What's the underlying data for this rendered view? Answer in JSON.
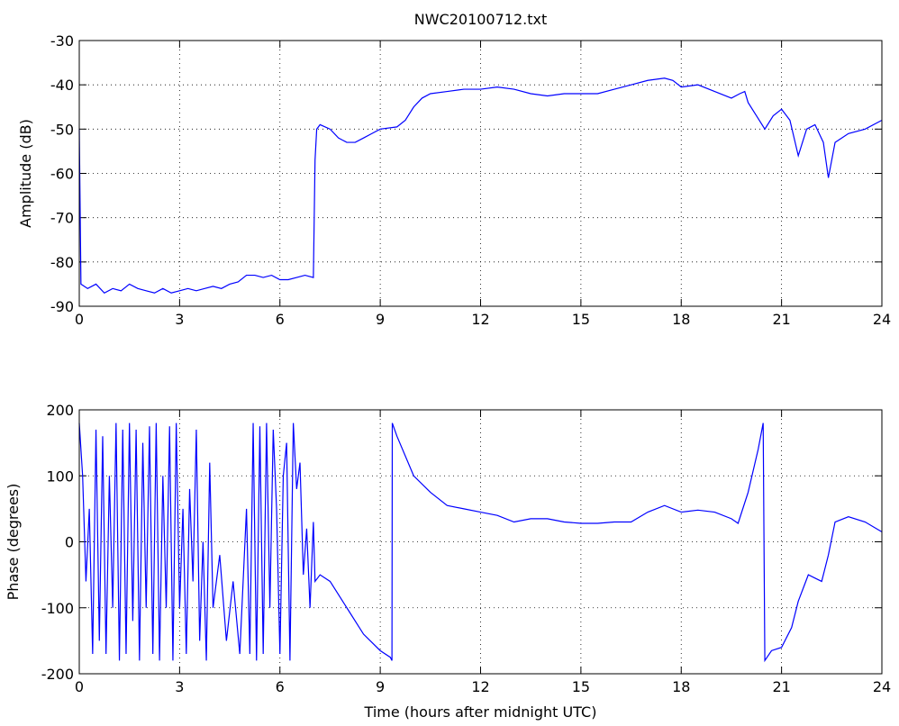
{
  "chart_data": [
    {
      "type": "line",
      "title": "NWC20100712.txt",
      "y_label": "Amplitude (dB)",
      "xlim": [
        0,
        24
      ],
      "xticks": [
        0,
        3,
        6,
        9,
        12,
        15,
        18,
        21,
        24
      ],
      "ylim": [
        -90,
        -30
      ],
      "yticks": [
        -90,
        -80,
        -70,
        -60,
        -50,
        -40,
        -30
      ],
      "grid": true,
      "x": [
        0,
        0.05,
        0.25,
        0.5,
        0.75,
        1,
        1.25,
        1.5,
        1.75,
        2,
        2.25,
        2.5,
        2.75,
        3,
        3.25,
        3.5,
        3.75,
        4,
        4.25,
        4.5,
        4.75,
        5,
        5.25,
        5.5,
        5.75,
        6,
        6.25,
        6.5,
        6.75,
        7,
        7.05,
        7.1,
        7.2,
        7.5,
        7.75,
        8,
        8.25,
        8.5,
        8.75,
        9,
        9.5,
        9.75,
        10,
        10.25,
        10.5,
        11,
        11.5,
        12,
        12.5,
        13,
        13.5,
        14,
        14.5,
        15,
        15.5,
        16,
        16.5,
        17,
        17.5,
        17.75,
        18,
        18.5,
        19,
        19.5,
        19.75,
        19.9,
        20,
        20.25,
        20.5,
        20.75,
        21,
        21.25,
        21.5,
        21.75,
        22,
        22.25,
        22.4,
        22.6,
        23,
        23.5,
        24
      ],
      "series": [
        {
          "color": "#0000ff",
          "values": [
            -50,
            -85,
            -86,
            -85,
            -87,
            -86,
            -86.5,
            -85,
            -86,
            -86.5,
            -87,
            -86,
            -87,
            -86.5,
            -86,
            -86.5,
            -86,
            -85.5,
            -86,
            -85,
            -84.5,
            -83,
            -83,
            -83.5,
            -83,
            -84,
            -84,
            -83.5,
            -83,
            -83.5,
            -57,
            -50,
            -49,
            -50,
            -52,
            -53,
            -53,
            -52,
            -51,
            -50,
            -49.5,
            -48,
            -45,
            -43,
            -42,
            -41.5,
            -41,
            -41,
            -40.5,
            -41,
            -42,
            -42.5,
            -42,
            -42,
            -42,
            -41,
            -40,
            -39,
            -38.5,
            -39,
            -40.5,
            -40,
            -41.5,
            -43,
            -42,
            -41.5,
            -44,
            -47,
            -50,
            -47,
            -45.5,
            -48,
            -56,
            -50,
            -49,
            -53,
            -61,
            -53,
            -51,
            -50,
            -48
          ]
        }
      ]
    },
    {
      "type": "line",
      "x_label": "Time (hours after midnight UTC)",
      "y_label": "Phase (degrees)",
      "xlim": [
        0,
        24
      ],
      "xticks": [
        0,
        3,
        6,
        9,
        12,
        15,
        18,
        21,
        24
      ],
      "ylim": [
        -200,
        200
      ],
      "yticks": [
        -200,
        -100,
        0,
        100,
        200
      ],
      "grid": true,
      "x": [
        0,
        0.1,
        0.2,
        0.3,
        0.4,
        0.5,
        0.6,
        0.7,
        0.8,
        0.9,
        1,
        1.1,
        1.2,
        1.3,
        1.4,
        1.5,
        1.6,
        1.7,
        1.8,
        1.9,
        2,
        2.1,
        2.2,
        2.3,
        2.4,
        2.5,
        2.6,
        2.7,
        2.8,
        2.9,
        3,
        3.1,
        3.2,
        3.3,
        3.4,
        3.5,
        3.6,
        3.7,
        3.8,
        3.9,
        4,
        4.2,
        4.4,
        4.6,
        4.8,
        5,
        5.1,
        5.2,
        5.3,
        5.4,
        5.5,
        5.6,
        5.7,
        5.8,
        5.9,
        6,
        6.1,
        6.2,
        6.3,
        6.4,
        6.5,
        6.6,
        6.7,
        6.8,
        6.9,
        7,
        7.05,
        7.2,
        7.5,
        8,
        8.5,
        9,
        9.3,
        9.35,
        9.36,
        9.5,
        10,
        10.5,
        11,
        11.5,
        12,
        12.5,
        13,
        13.5,
        14,
        14.5,
        15,
        15.5,
        16,
        16.5,
        17,
        17.5,
        18,
        18.5,
        19,
        19.5,
        19.7,
        20,
        20.3,
        20.45,
        20.5,
        20.7,
        21,
        21.3,
        21.5,
        21.8,
        22,
        22.2,
        22.4,
        22.6,
        23,
        23.5,
        24
      ],
      "series": [
        {
          "color": "#0000ff",
          "values": [
            180,
            100,
            -60,
            50,
            -170,
            170,
            -150,
            160,
            -170,
            100,
            -100,
            180,
            -180,
            170,
            -170,
            180,
            -120,
            170,
            -180,
            150,
            -100,
            175,
            -170,
            180,
            -180,
            100,
            -100,
            175,
            -180,
            180,
            -100,
            50,
            -170,
            80,
            -60,
            170,
            -150,
            0,
            -180,
            120,
            -100,
            -20,
            -150,
            -60,
            -170,
            50,
            -170,
            180,
            -180,
            175,
            -170,
            180,
            -100,
            170,
            50,
            -170,
            100,
            150,
            -180,
            180,
            80,
            120,
            -50,
            20,
            -100,
            30,
            -60,
            -50,
            -60,
            -100,
            -140,
            -165,
            -175,
            -180,
            180,
            160,
            100,
            75,
            55,
            50,
            45,
            40,
            30,
            35,
            35,
            30,
            28,
            28,
            30,
            30,
            45,
            55,
            45,
            48,
            45,
            35,
            28,
            75,
            140,
            180,
            -180,
            -165,
            -160,
            -130,
            -90,
            -50,
            -55,
            -60,
            -20,
            30,
            38,
            30,
            15
          ]
        }
      ]
    }
  ]
}
